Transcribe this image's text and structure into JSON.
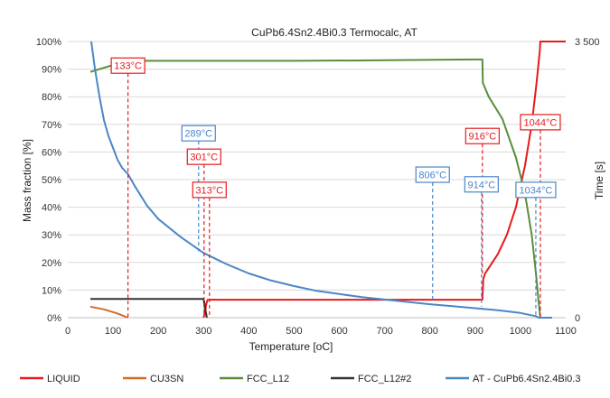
{
  "chart_data": {
    "type": "line",
    "title": "CuPb6.4Sn2.4Bi0.3 Termocalc, AT",
    "xlabel": "Temperature [",
    "xlabel_unit": "oC",
    "xlabel_close": "]",
    "ylabel": "Mass fraction [%]",
    "y2label": "Time [s]",
    "xlim": [
      0,
      1100
    ],
    "ylim": [
      0,
      100
    ],
    "y2lim": [
      0,
      3500
    ],
    "xticks": [
      0,
      100,
      200,
      300,
      400,
      500,
      600,
      700,
      800,
      900,
      1000,
      1100
    ],
    "xtick_labels": [
      "0",
      "100",
      "200",
      "300",
      "400",
      "500",
      "600",
      "700",
      "800",
      "900",
      "1000",
      "1100"
    ],
    "yticks": [
      0,
      10,
      20,
      30,
      40,
      50,
      60,
      70,
      80,
      90,
      100
    ],
    "ytick_labels": [
      "0%",
      "10%",
      "20%",
      "30%",
      "40%",
      "50%",
      "60%",
      "70%",
      "80%",
      "90%",
      "100%"
    ],
    "y2ticks": [
      0,
      3500
    ],
    "y2tick_labels": [
      "0",
      "3 500"
    ],
    "grid": true,
    "legend_position": "bottom",
    "series": [
      {
        "name": "LIQUID",
        "color": "#e8191c",
        "axis": "left",
        "x": [
          50,
          916,
          918,
          922,
          930,
          950,
          970,
          990,
          1010,
          1025,
          1035,
          1040,
          1043,
          1044,
          1100
        ],
        "y": [
          null,
          6.5,
          14,
          16,
          18,
          23,
          30,
          40,
          55,
          70,
          84,
          92,
          97,
          100,
          100
        ],
        "segments": [
          {
            "x": [
              300,
              303,
              306,
              307
            ],
            "y": [
              7,
              3,
              1,
              0
            ]
          },
          {
            "x": [
              300,
              303,
              306,
              309,
              311
            ],
            "y": [
              0,
              2,
              5,
              6.5,
              6.5
            ]
          },
          {
            "x": [
              311,
              916,
              918,
              922,
              930,
              950,
              970,
              990,
              1010,
              1025,
              1035,
              1040,
              1043,
              1044,
              1100
            ],
            "y": [
              6.5,
              6.5,
              14,
              16,
              18,
              23,
              30,
              40,
              55,
              70,
              84,
              92,
              97,
              100,
              100
            ]
          }
        ]
      },
      {
        "name": "CU3SN",
        "color": "#d46a28",
        "axis": "left",
        "segments": [
          {
            "x": [
              50,
              80,
              110,
              133
            ],
            "y": [
              4,
              3,
              1.5,
              0
            ]
          }
        ]
      },
      {
        "name": "FCC_L12",
        "color": "#5a8e3a",
        "axis": "left",
        "segments": [
          {
            "x": [
              50,
              80,
              110,
              133,
              300,
              500,
              700,
              900,
              916,
              917,
              930,
              960,
              990,
              1010,
              1025,
              1035,
              1040,
              1044
            ],
            "y": [
              89,
              90.5,
              92,
              93,
              93,
              93,
              93.2,
              93.5,
              93.5,
              85,
              80,
              72,
              58,
              45,
              30,
              15,
              6,
              0
            ]
          }
        ]
      },
      {
        "name": "FCC_L12#2",
        "color": "#333333",
        "axis": "left",
        "segments": [
          {
            "x": [
              50,
              300,
              302,
              304,
              306,
              307
            ],
            "y": [
              6.8,
              6.8,
              5,
              3,
              1,
              0
            ]
          }
        ]
      },
      {
        "name": "AT - CuPb6.4Sn2.4Bi0.3",
        "color": "#4a86c8",
        "axis": "right",
        "segments": [
          {
            "x": [
              52,
              60,
              70,
              80,
              90,
              100,
              110,
              120,
              133,
              150,
              175,
              200,
              250,
              300,
              350,
              400,
              450,
              500,
              550,
              600,
              650,
              700,
              750,
              800,
              850,
              900,
              950,
              1000,
              1034,
              1040,
              1060,
              1070
            ],
            "y": [
              3500,
              3150,
              2800,
              2500,
              2300,
              2150,
              2000,
              1900,
              1820,
              1650,
              1420,
              1250,
              1020,
              820,
              680,
              560,
              470,
              400,
              340,
              300,
              260,
              230,
              200,
              170,
              145,
              120,
              95,
              60,
              20,
              0,
              0,
              0
            ]
          }
        ]
      }
    ],
    "annotations": [
      {
        "label": "133°C",
        "x": 133,
        "color": "#e8191c",
        "box_y": 88.5,
        "line_to": 0
      },
      {
        "label": "289°C",
        "x": 289,
        "color": "#4a86c8",
        "box_y": 64,
        "line_to": 24
      },
      {
        "label": "301°C",
        "x": 301,
        "color": "#e8191c",
        "box_y": 55.5,
        "line_to": 0
      },
      {
        "label": "313°C",
        "x": 313,
        "color": "#e8191c",
        "box_y": 43.5,
        "line_to": 0
      },
      {
        "label": "806°C",
        "x": 806,
        "color": "#4a86c8",
        "box_y": 49,
        "line_to": 6
      },
      {
        "label": "916°C",
        "x": 916,
        "color": "#e8191c",
        "box_y": 63,
        "line_to": 16
      },
      {
        "label": "914°C",
        "x": 914,
        "color": "#4a86c8",
        "box_y": 45.5,
        "line_to": 4
      },
      {
        "label": "1044°C",
        "x": 1044,
        "color": "#e8191c",
        "box_y": 68,
        "line_to": 0
      },
      {
        "label": "1034°C",
        "x": 1034,
        "color": "#4a86c8",
        "box_y": 43.5,
        "line_to": 0
      }
    ],
    "legend": [
      {
        "name": "LIQUID",
        "color": "#e8191c"
      },
      {
        "name": "CU3SN",
        "color": "#d46a28"
      },
      {
        "name": "FCC_L12",
        "color": "#5a8e3a"
      },
      {
        "name": "FCC_L12#2",
        "color": "#333333"
      },
      {
        "name": "AT - CuPb6.4Sn2.4Bi0.3",
        "color": "#4a86c8"
      }
    ]
  }
}
